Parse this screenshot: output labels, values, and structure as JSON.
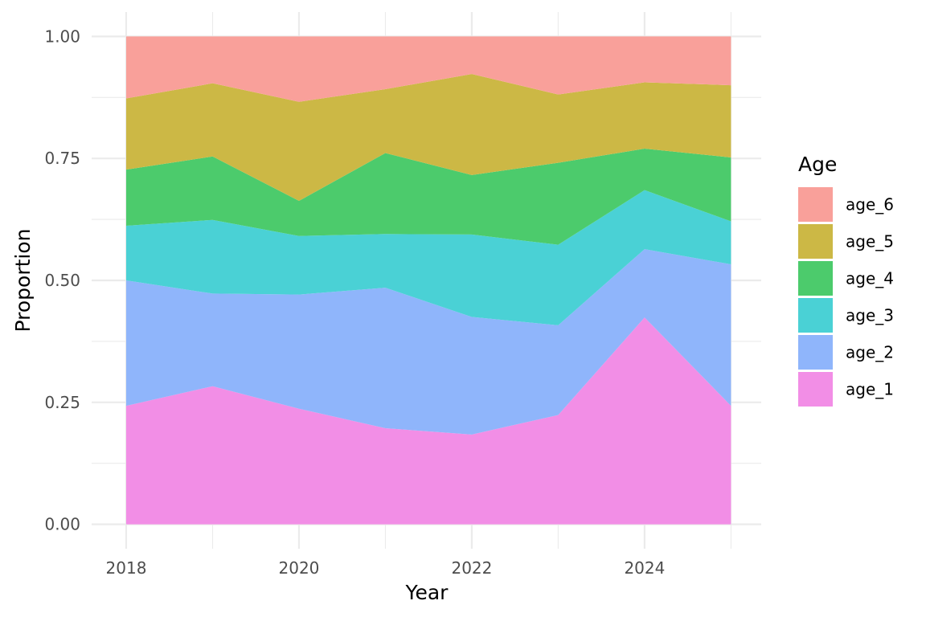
{
  "chart_data": {
    "type": "area",
    "stacked": true,
    "normalized": true,
    "title": "",
    "xlabel": "Year",
    "ylabel": "Proportion",
    "x": [
      2018,
      2019,
      2020,
      2021,
      2022,
      2023,
      2024,
      2025
    ],
    "xlim": [
      2017.6,
      2025.35
    ],
    "x_ticks": [
      2018,
      2020,
      2022,
      2024
    ],
    "x_tick_labels": [
      "2018",
      "2020",
      "2022",
      "2024"
    ],
    "ylim": [
      -0.05,
      1.05
    ],
    "y_ticks": [
      0,
      0.25,
      0.5,
      0.75,
      1
    ],
    "y_tick_labels": [
      "0.00",
      "0.25",
      "0.50",
      "0.75",
      "1.00"
    ],
    "grid": true,
    "legend_title": "Age",
    "legend_placement": "right",
    "stack_order_bottom_to_top": [
      "age_1",
      "age_2",
      "age_3",
      "age_4",
      "age_5",
      "age_6"
    ],
    "series": [
      {
        "name": "age_1",
        "color": "#F28EE6",
        "values": [
          0.243,
          0.283,
          0.237,
          0.197,
          0.184,
          0.224,
          0.424,
          0.243
        ]
      },
      {
        "name": "age_2",
        "color": "#8FB5FB",
        "values": [
          0.257,
          0.19,
          0.234,
          0.288,
          0.241,
          0.184,
          0.14,
          0.29
        ]
      },
      {
        "name": "age_3",
        "color": "#4AD1D5",
        "values": [
          0.112,
          0.151,
          0.12,
          0.11,
          0.169,
          0.165,
          0.121,
          0.088
        ]
      },
      {
        "name": "age_4",
        "color": "#4CCB6C",
        "values": [
          0.115,
          0.13,
          0.072,
          0.166,
          0.122,
          0.168,
          0.085,
          0.131
        ]
      },
      {
        "name": "age_5",
        "color": "#CCB845",
        "values": [
          0.146,
          0.15,
          0.203,
          0.131,
          0.207,
          0.14,
          0.136,
          0.148
        ]
      },
      {
        "name": "age_6",
        "color": "#F9A09A",
        "values": [
          0.127,
          0.096,
          0.134,
          0.108,
          0.077,
          0.119,
          0.094,
          0.1
        ]
      }
    ],
    "legend_entries": [
      "age_6",
      "age_5",
      "age_4",
      "age_3",
      "age_2",
      "age_1"
    ]
  }
}
